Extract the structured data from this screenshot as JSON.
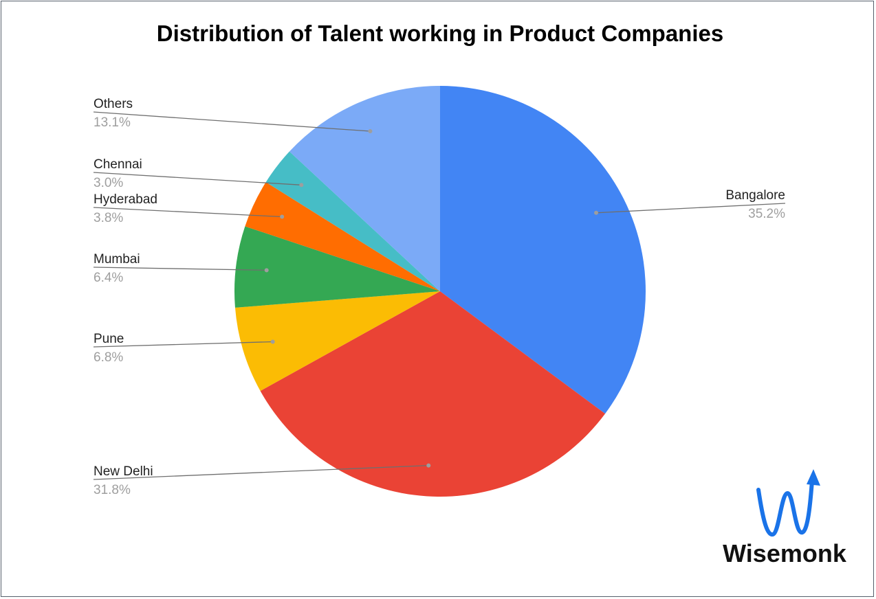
{
  "chart_data": {
    "type": "pie",
    "title": "Distribution of Talent working in Product Companies",
    "slices": [
      {
        "label": "Bangalore",
        "value": 35.2,
        "pct_label": "35.2%",
        "color": "#4285f4"
      },
      {
        "label": "New Delhi",
        "value": 31.8,
        "pct_label": "31.8%",
        "color": "#ea4335"
      },
      {
        "label": "Pune",
        "value": 6.8,
        "pct_label": "6.8%",
        "color": "#fbbc04"
      },
      {
        "label": "Mumbai",
        "value": 6.4,
        "pct_label": "6.4%",
        "color": "#34a853"
      },
      {
        "label": "Hyderabad",
        "value": 3.8,
        "pct_label": "3.8%",
        "color": "#ff6d01"
      },
      {
        "label": "Chennai",
        "value": 3.0,
        "pct_label": "3.0%",
        "color": "#46bdc6"
      },
      {
        "label": "Others",
        "value": 13.1,
        "pct_label": "13.1%",
        "color": "#7baaf7"
      }
    ],
    "start_angle_deg": 0,
    "direction": "clockwise",
    "legend": "none",
    "labels": "outside-with-leader-lines"
  },
  "logo": {
    "text": "Wisemonk",
    "mark_color": "#1a73e8"
  }
}
